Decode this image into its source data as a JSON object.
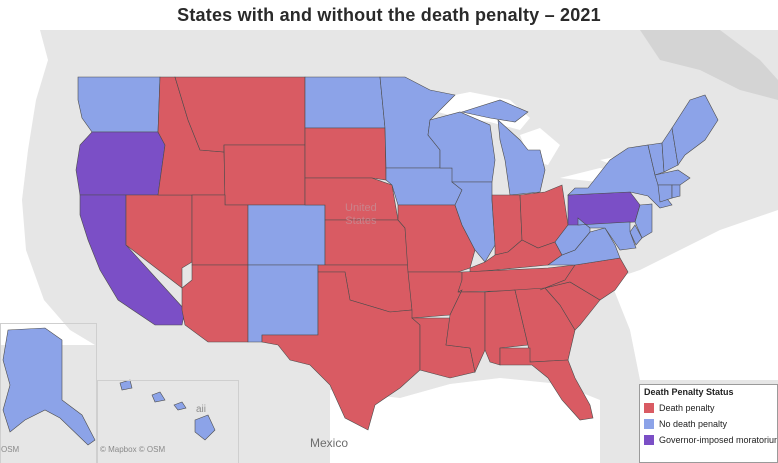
{
  "title": "States with and without the death penalty – 2021",
  "map_labels": {
    "country_us": "United\nStates",
    "country_mx": "Mexico",
    "hawaii": "aii"
  },
  "attribution": {
    "alaska": "OSM",
    "hawaii": "© Mapbox  © OSM"
  },
  "legend": {
    "title": "Death Penalty Status",
    "items": [
      {
        "label": "Death penalty",
        "color": "#d95b63"
      },
      {
        "label": "No death penalty",
        "color": "#8ca3e8"
      },
      {
        "label": "Governor-imposed moratorium",
        "color": "#7b4fc6"
      }
    ]
  },
  "colors": {
    "death_penalty": "#d95b63",
    "no_death_penalty": "#8ca3e8",
    "moratorium": "#7b4fc6",
    "land": "#e6e6e6",
    "water": "#ffffff",
    "border": "#4c4c4c"
  },
  "states": {
    "Washington": "No death penalty",
    "Oregon": "Governor-imposed moratorium",
    "California": "Governor-imposed moratorium",
    "Nevada": "Death penalty",
    "Idaho": "Death penalty",
    "Montana": "Death penalty",
    "Wyoming": "Death penalty",
    "Utah": "Death penalty",
    "Arizona": "Death penalty",
    "Colorado": "No death penalty",
    "New Mexico": "No death penalty",
    "North Dakota": "No death penalty",
    "South Dakota": "Death penalty",
    "Nebraska": "Death penalty",
    "Kansas": "Death penalty",
    "Oklahoma": "Death penalty",
    "Texas": "Death penalty",
    "Minnesota": "No death penalty",
    "Iowa": "No death penalty",
    "Missouri": "Death penalty",
    "Arkansas": "Death penalty",
    "Louisiana": "Death penalty",
    "Wisconsin": "No death penalty",
    "Illinois": "No death penalty",
    "Michigan": "No death penalty",
    "Indiana": "Death penalty",
    "Ohio": "Death penalty",
    "Kentucky": "Death penalty",
    "Tennessee": "Death penalty",
    "Mississippi": "Death penalty",
    "Alabama": "Death penalty",
    "Georgia": "Death penalty",
    "Florida": "Death penalty",
    "South Carolina": "Death penalty",
    "North Carolina": "Death penalty",
    "Virginia": "No death penalty",
    "West Virginia": "No death penalty",
    "Pennsylvania": "Governor-imposed moratorium",
    "New York": "No death penalty",
    "Vermont": "No death penalty",
    "New Hampshire": "No death penalty",
    "Maine": "No death penalty",
    "Massachusetts": "No death penalty",
    "Connecticut": "No death penalty",
    "Rhode Island": "No death penalty",
    "New Jersey": "No death penalty",
    "Delaware": "No death penalty",
    "Maryland": "No death penalty",
    "Alaska": "No death penalty",
    "Hawaii": "No death penalty"
  }
}
